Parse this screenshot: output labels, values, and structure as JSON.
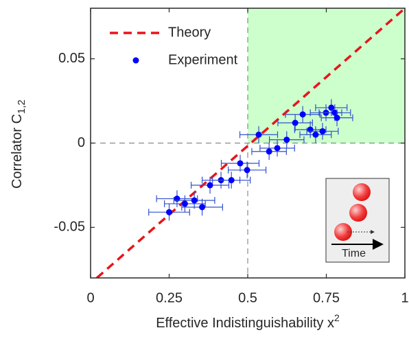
{
  "chart_data": {
    "type": "scatter",
    "x_label": {
      "text": "Effective Indistinguishability x",
      "superscript": "2"
    },
    "y_label": {
      "text": "Correlator C",
      "subscript": "1,2"
    },
    "xlim": [
      0,
      1
    ],
    "ylim": [
      -0.08,
      0.08
    ],
    "xticks": [
      0,
      0.25,
      0.5,
      0.75,
      1
    ],
    "yticks": [
      -0.05,
      0,
      0.05
    ],
    "reference_lines": {
      "x": 0.5,
      "y": 0
    },
    "shaded_region": {
      "x": [
        0.5,
        1
      ],
      "y": [
        0,
        0.08
      ],
      "color": "#ccffcc"
    },
    "legend": "upper left",
    "inset_label": "Time",
    "series": [
      {
        "name": "Theory",
        "type": "line",
        "color": "#e8141b",
        "x": [
          0.02,
          1
        ],
        "values": [
          -0.08,
          0.08
        ]
      },
      {
        "name": "Experiment",
        "type": "scatter",
        "color": "#0000ff",
        "error_color": "#2f4fd0",
        "x": [
          0.25,
          0.275,
          0.3,
          0.33,
          0.355,
          0.38,
          0.415,
          0.448,
          0.476,
          0.498,
          0.535,
          0.568,
          0.594,
          0.624,
          0.651,
          0.675,
          0.699,
          0.716,
          0.738,
          0.749,
          0.766,
          0.777,
          0.784
        ],
        "values": [
          -0.041,
          -0.033,
          -0.036,
          -0.034,
          -0.038,
          -0.025,
          -0.022,
          -0.022,
          -0.012,
          -0.016,
          0.005,
          -0.005,
          -0.003,
          0.002,
          0.012,
          0.017,
          0.008,
          0.005,
          0.007,
          0.018,
          0.021,
          0.018,
          0.015
        ],
        "x_err": [
          0.065,
          0.065,
          0.065,
          0.065,
          0.065,
          0.06,
          0.06,
          0.06,
          0.06,
          0.06,
          0.06,
          0.055,
          0.055,
          0.055,
          0.055,
          0.055,
          0.05,
          0.05,
          0.05,
          0.05,
          0.05,
          0.05,
          0.05
        ],
        "y_err": [
          0.005,
          0.005,
          0.005,
          0.005,
          0.005,
          0.005,
          0.005,
          0.005,
          0.005,
          0.005,
          0.005,
          0.005,
          0.005,
          0.005,
          0.005,
          0.005,
          0.005,
          0.005,
          0.005,
          0.005,
          0.005,
          0.005,
          0.005
        ]
      }
    ]
  }
}
